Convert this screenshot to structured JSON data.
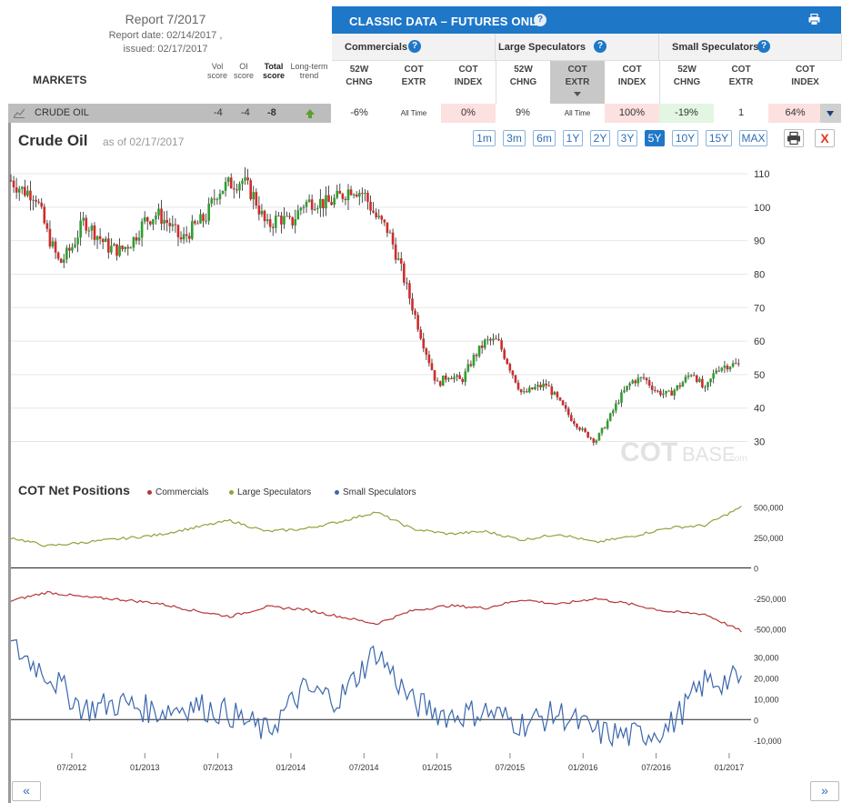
{
  "report": {
    "title": "Report 7/2017",
    "report_date": "Report date: 02/14/2017 ,",
    "issued": "issued: 02/17/2017"
  },
  "markets_label": "MARKETS",
  "score_headers": {
    "vol": [
      "Vol",
      "score"
    ],
    "oi": [
      "OI",
      "score"
    ],
    "total": [
      "Total",
      "score"
    ],
    "trend": [
      "Long-term",
      "trend"
    ]
  },
  "classic": {
    "title": "CLASSIC DATA – FUTURES ONLY",
    "help": "?"
  },
  "groups": [
    {
      "label": "Commercials"
    },
    {
      "label": "Large Speculators"
    },
    {
      "label": "Small Speculators"
    }
  ],
  "subheaders": [
    [
      "52W",
      "CHNG"
    ],
    [
      "COT",
      "EXTR"
    ],
    [
      "COT",
      "INDEX"
    ],
    [
      "52W",
      "CHNG"
    ],
    [
      "COT",
      "EXTR"
    ],
    [
      "COT",
      "INDEX"
    ],
    [
      "52W",
      "CHNG"
    ],
    [
      "COT",
      "EXTR"
    ],
    [
      "COT",
      "INDEX"
    ]
  ],
  "row": {
    "market": "CRUDE OIL",
    "vol_score": "-4",
    "oi_score": "-4",
    "total_score": "-8",
    "trend": "up",
    "cells": [
      "-6%",
      "All Time",
      "0%",
      "9%",
      "All Time",
      "100%",
      "-19%",
      "1",
      "64%"
    ]
  },
  "colors": {
    "accent": "#1f77c8",
    "commercials": "#b5373a",
    "large_speculators": "#8aa63c",
    "small_speculators": "#3b67ad",
    "candle_up": "#2e9e2e",
    "candle_down": "#d12b2b",
    "cell_red": "#fde0e0",
    "cell_green": "#e2f6e2"
  },
  "chart": {
    "title": "Crude Oil",
    "asof": "as of 02/17/2017",
    "ranges": [
      "1m",
      "3m",
      "6m",
      "1Y",
      "2Y",
      "3Y",
      "5Y",
      "10Y",
      "15Y",
      "MAX"
    ],
    "active_range": "5Y",
    "close": "X",
    "watermark_a": "COT",
    "watermark_b": "BASE",
    "watermark_c": ".com"
  },
  "cot": {
    "title": "COT Net Positions",
    "legend": [
      "Commercials",
      "Large Speculators",
      "Small Speculators"
    ]
  },
  "nav": {
    "prev": "«",
    "next": "»"
  },
  "chart_data": [
    {
      "type": "line",
      "title": "Crude Oil",
      "style": "candlestick",
      "x_ticks": [
        "07/2012",
        "01/2013",
        "07/2013",
        "01/2014",
        "07/2014",
        "01/2015",
        "07/2015",
        "01/2016",
        "07/2016",
        "01/2017"
      ],
      "y_ticks": [
        30,
        40,
        50,
        60,
        70,
        80,
        90,
        100,
        110
      ],
      "ylim": [
        22,
        113
      ],
      "series": [
        {
          "x": [
            "2012-02",
            "2012-03",
            "2012-04",
            "2012-05",
            "2012-06",
            "2012-07",
            "2012-08",
            "2012-09",
            "2012-10",
            "2012-11",
            "2012-12",
            "2013-01",
            "2013-02",
            "2013-03",
            "2013-04",
            "2013-05",
            "2013-06",
            "2013-07",
            "2013-08",
            "2013-09",
            "2013-10",
            "2013-11",
            "2013-12",
            "2014-01",
            "2014-02",
            "2014-03",
            "2014-04",
            "2014-05",
            "2014-06",
            "2014-07",
            "2014-08",
            "2014-09",
            "2014-10",
            "2014-11",
            "2014-12",
            "2015-01",
            "2015-02",
            "2015-03",
            "2015-04",
            "2015-05",
            "2015-06",
            "2015-07",
            "2015-08",
            "2015-09",
            "2015-10",
            "2015-11",
            "2015-12",
            "2016-01",
            "2016-02",
            "2016-03",
            "2016-04",
            "2016-05",
            "2016-06",
            "2016-07",
            "2016-08",
            "2016-09",
            "2016-10",
            "2016-11",
            "2016-12",
            "2017-01",
            "2017-02"
          ],
          "values": [
            108,
            105,
            104,
            92,
            83,
            88,
            96,
            92,
            88,
            87,
            90,
            96,
            98,
            95,
            90,
            94,
            97,
            105,
            107,
            108,
            103,
            94,
            97,
            95,
            101,
            102,
            101,
            103,
            106,
            104,
            97,
            93,
            82,
            70,
            58,
            47,
            50,
            48,
            55,
            60,
            60,
            52,
            44,
            46,
            47,
            42,
            37,
            33,
            30,
            36,
            43,
            48,
            49,
            45,
            44,
            47,
            51,
            45,
            52,
            53,
            53
          ]
        }
      ]
    },
    {
      "type": "line",
      "title": "COT Net Positions",
      "x_ticks": [
        "07/2012",
        "01/2013",
        "07/2013",
        "01/2014",
        "07/2014",
        "01/2015",
        "07/2015",
        "01/2016",
        "07/2016",
        "01/2017"
      ],
      "y_ticks": [
        500000,
        250000,
        0,
        -250000,
        -500000
      ],
      "ylim": [
        -520000,
        520000
      ],
      "x": [
        "2012-02",
        "2012-05",
        "2012-08",
        "2012-11",
        "2013-02",
        "2013-05",
        "2013-08",
        "2013-11",
        "2014-02",
        "2014-05",
        "2014-08",
        "2014-11",
        "2015-02",
        "2015-05",
        "2015-08",
        "2015-11",
        "2016-02",
        "2016-05",
        "2016-08",
        "2016-11",
        "2017-02"
      ],
      "series": [
        {
          "name": "Large Speculators",
          "values": [
            250000,
            180000,
            210000,
            240000,
            270000,
            330000,
            390000,
            300000,
            320000,
            380000,
            460000,
            320000,
            280000,
            300000,
            230000,
            280000,
            210000,
            260000,
            330000,
            350000,
            500000
          ]
        },
        {
          "name": "Commercials",
          "values": [
            -270000,
            -200000,
            -240000,
            -260000,
            -290000,
            -350000,
            -400000,
            -320000,
            -340000,
            -400000,
            -460000,
            -350000,
            -310000,
            -330000,
            -260000,
            -300000,
            -250000,
            -300000,
            -360000,
            -380000,
            -520000
          ]
        }
      ]
    },
    {
      "type": "line",
      "title": "COT Net Positions",
      "y_ticks": [
        30000,
        20000,
        10000,
        0,
        -10000
      ],
      "ylim": [
        -16000,
        38000
      ],
      "x": [
        "2012-02",
        "2012-05",
        "2012-08",
        "2012-11",
        "2013-02",
        "2013-05",
        "2013-08",
        "2013-11",
        "2014-02",
        "2014-05",
        "2014-08",
        "2014-11",
        "2015-02",
        "2015-05",
        "2015-08",
        "2015-11",
        "2016-02",
        "2016-05",
        "2016-08",
        "2016-11",
        "2017-02"
      ],
      "series": [
        {
          "name": "Small Speculators",
          "values": [
            35000,
            22000,
            5000,
            8000,
            4000,
            7000,
            3000,
            -6000,
            14000,
            10000,
            33000,
            8000,
            2000,
            4000,
            -2000,
            3000,
            -6000,
            -8000,
            -4000,
            18000,
            19000
          ]
        }
      ]
    }
  ]
}
